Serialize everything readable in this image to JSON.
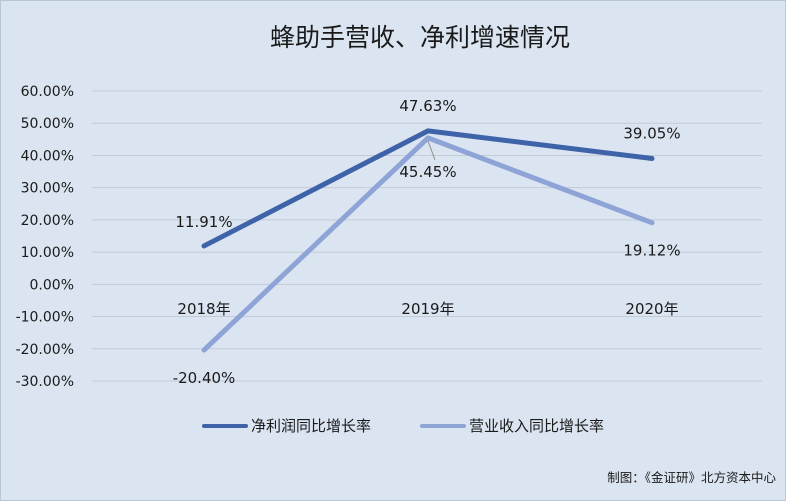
{
  "chart_data": {
    "type": "line",
    "title": "蜂助手营收、净利增速情况",
    "categories": [
      "2018年",
      "2019年",
      "2020年"
    ],
    "y_ticks": [
      "60.00%",
      "50.00%",
      "40.00%",
      "30.00%",
      "20.00%",
      "10.00%",
      "0.00%",
      "-10.00%",
      "-20.00%",
      "-30.00%"
    ],
    "ylim": [
      -30,
      60
    ],
    "y_unit": "%",
    "grid": true,
    "legend_position": "bottom",
    "series": [
      {
        "name": "净利润同比增长率",
        "values": [
          11.91,
          47.63,
          39.05
        ],
        "labels": [
          "11.91%",
          "47.63%",
          "39.05%"
        ],
        "color": "#3f63a9"
      },
      {
        "name": "营业收入同比增长率",
        "values": [
          -20.4,
          45.45,
          19.12
        ],
        "labels": [
          "-20.40%",
          "45.45%",
          "19.12%"
        ],
        "color": "#8fa4d6"
      }
    ]
  },
  "source": "制图：《金证研》北方资本中心"
}
